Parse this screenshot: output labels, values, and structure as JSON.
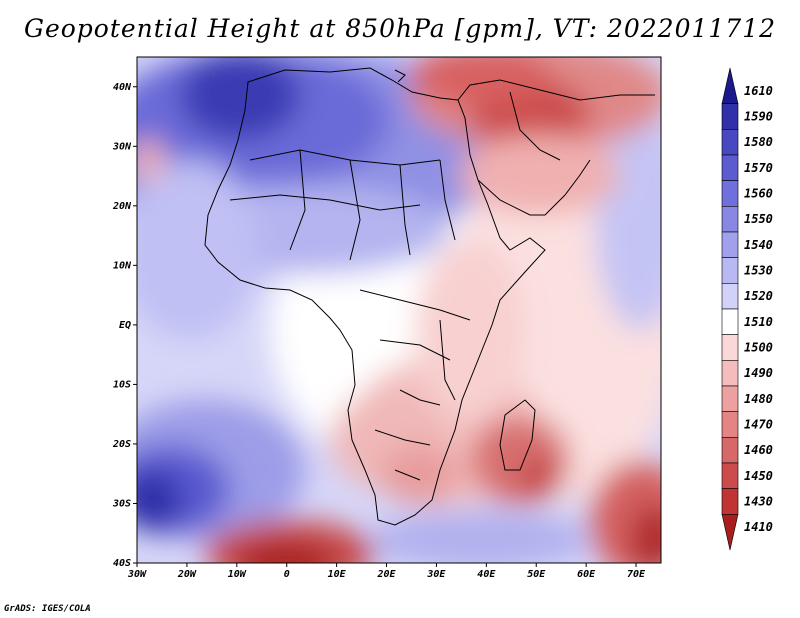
{
  "title": "Geopotential Height at 850hPa [gpm], VT: 2022011712",
  "credit": "GrADS: IGES/COLA",
  "map": {
    "variable": "Geopotential Height at 850hPa",
    "units": "gpm",
    "valid_time": "2022011712",
    "lon_range": [
      -30,
      75
    ],
    "lat_range": [
      -40,
      45
    ],
    "lat_labels": [
      "40N",
      "30N",
      "20N",
      "10N",
      "EQ",
      "10S",
      "20S",
      "30S",
      "40S"
    ],
    "lat_values": [
      40,
      30,
      20,
      10,
      0,
      -10,
      -20,
      -30,
      -40
    ],
    "lon_labels": [
      "30W",
      "20W",
      "10W",
      "0",
      "10E",
      "20E",
      "30E",
      "40E",
      "50E",
      "60E",
      "70E"
    ],
    "lon_values": [
      -30,
      -20,
      -10,
      0,
      10,
      20,
      30,
      40,
      50,
      60,
      70
    ]
  },
  "colorbar": {
    "levels": [
      "1610",
      "1590",
      "1580",
      "1570",
      "1560",
      "1550",
      "1540",
      "1530",
      "1520",
      "1510",
      "1500",
      "1490",
      "1480",
      "1470",
      "1460",
      "1450",
      "1430",
      "1410"
    ],
    "colors": [
      "#1a1a8c",
      "#3030a8",
      "#4848c0",
      "#5c5cd0",
      "#7070dc",
      "#8888e4",
      "#a0a0ec",
      "#b8b8f2",
      "#d2d2f8",
      "#ffffff",
      "#fad8d8",
      "#f4bcbc",
      "#eca0a0",
      "#e48484",
      "#d86868",
      "#cc4c4c",
      "#c03434",
      "#a81e1e"
    ]
  },
  "features": [
    {
      "name": "high-north-africa",
      "value": 1590
    },
    {
      "name": "high-south-atlantic",
      "value": 1570
    },
    {
      "name": "low-middle-east",
      "value": 1450
    },
    {
      "name": "low-southern-africa",
      "value": 1470
    },
    {
      "name": "low-madagascar",
      "value": 1450
    },
    {
      "name": "low-southwest-cutoff",
      "value": 1410
    },
    {
      "name": "low-southeast-indian-ocean",
      "value": 1430
    }
  ]
}
